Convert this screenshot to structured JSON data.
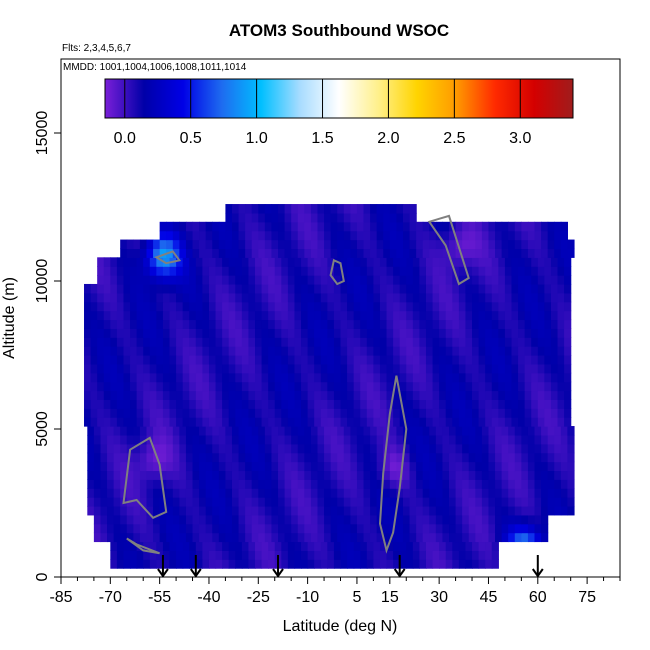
{
  "chart_data": {
    "type": "heatmap",
    "title": "ATOM3 Southbound WSOC",
    "subtitle_flights": "Flts: 2,3,4,5,6,7",
    "subtitle_dates": "MMDD: 1001,1004,1006,1008,1011,1014",
    "xlabel": "Latitude (deg N)",
    "ylabel": "Altitude (m)",
    "xlim": [
      -85,
      85
    ],
    "ylim": [
      0,
      17500
    ],
    "x_tick_labels": [
      "-85",
      "-70",
      "-55",
      "-40",
      "-25",
      "-10",
      "5",
      "15",
      "30",
      "45",
      "60",
      "75"
    ],
    "x_tick_values": [
      -85,
      -70,
      -55,
      -40,
      -25,
      -10,
      5,
      15,
      30,
      45,
      60,
      75
    ],
    "y_tick_labels": [
      "0",
      "5000",
      "10000",
      "15000"
    ],
    "y_tick_values": [
      0,
      5000,
      10000,
      15000
    ],
    "colorbar": {
      "range": [
        -0.15,
        3.4
      ],
      "tick_labels": [
        "0.0",
        "0.5",
        "1.0",
        "1.5",
        "2.0",
        "2.5",
        "3.0"
      ],
      "tick_values": [
        0,
        0.5,
        1.0,
        1.5,
        2.0,
        2.5,
        3.0
      ],
      "colors": [
        "#7a1fd8",
        "#0000a8",
        "#0000e6",
        "#1e6cf0",
        "#00bfff",
        "#a8dcff",
        "#ffffff",
        "#fff08c",
        "#ffd400",
        "#ff9a00",
        "#ff2a00",
        "#d40000",
        "#a01c1c"
      ]
    },
    "contour_color": "#808080",
    "flight_markers_lat": [
      -54,
      -44,
      -19,
      18,
      60
    ],
    "approx_values": {
      "background": 0.1,
      "enhanced_regions": [
        {
          "lat": -55,
          "alt": 10700,
          "value": 0.9
        },
        {
          "lat": 55,
          "alt": 800,
          "value": 0.9
        },
        {
          "lat": 15,
          "alt": 3500,
          "value": -0.1
        },
        {
          "lat": -58,
          "alt": 3800,
          "value": -0.1
        },
        {
          "lat": 35,
          "alt": 11000,
          "value": -0.1
        }
      ]
    }
  }
}
